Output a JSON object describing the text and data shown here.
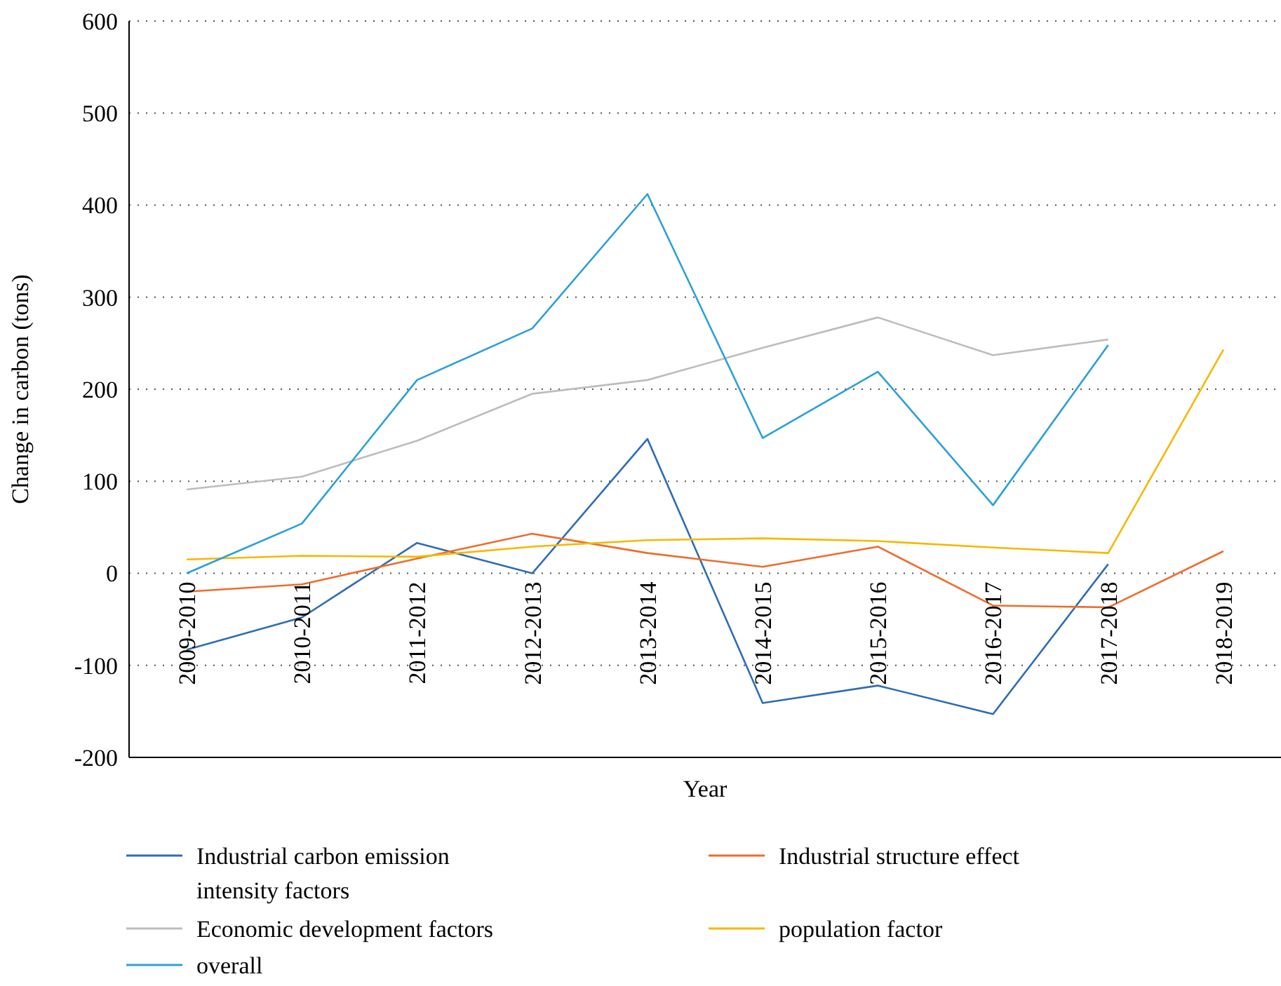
{
  "chart_data": {
    "type": "line",
    "xlabel": "Year",
    "ylabel": "Change in carbon (tons)",
    "categories": [
      "2009-2010",
      "2010-2011",
      "2011-2012",
      "2012-2013",
      "2013-2014",
      "2014-2015",
      "2015-2016",
      "2016-2017",
      "2017-2018",
      "2018-2019"
    ],
    "series": [
      {
        "name": "Industrial carbon emission intensity factors",
        "color": "#2e6db4",
        "values": [
          -83,
          -48,
          33,
          0,
          146,
          -141,
          -122,
          -153,
          10,
          null
        ]
      },
      {
        "name": "Industrial structure effect",
        "color": "#ef6c2a",
        "values": [
          -20,
          -12,
          16,
          43,
          22,
          7,
          29,
          -35,
          -37,
          24
        ]
      },
      {
        "name": "Economic development factors",
        "color": "#bdbdbd",
        "values": [
          91,
          105,
          144,
          195,
          210,
          245,
          278,
          237,
          254,
          null
        ]
      },
      {
        "name": "population factor",
        "color": "#f5b800",
        "values": [
          15,
          19,
          18,
          29,
          36,
          38,
          35,
          28,
          22,
          243
        ]
      },
      {
        "name": "overall",
        "color": "#2ba0d8",
        "values": [
          0,
          54,
          210,
          266,
          412,
          147,
          219,
          74,
          248,
          null
        ]
      }
    ],
    "ylim": [
      -200,
      600
    ],
    "yticks": [
      -200,
      -100,
      0,
      100,
      200,
      300,
      400,
      500,
      600
    ],
    "grid": "y",
    "legend": "bottom",
    "marker": "none",
    "line_style": "solid"
  }
}
